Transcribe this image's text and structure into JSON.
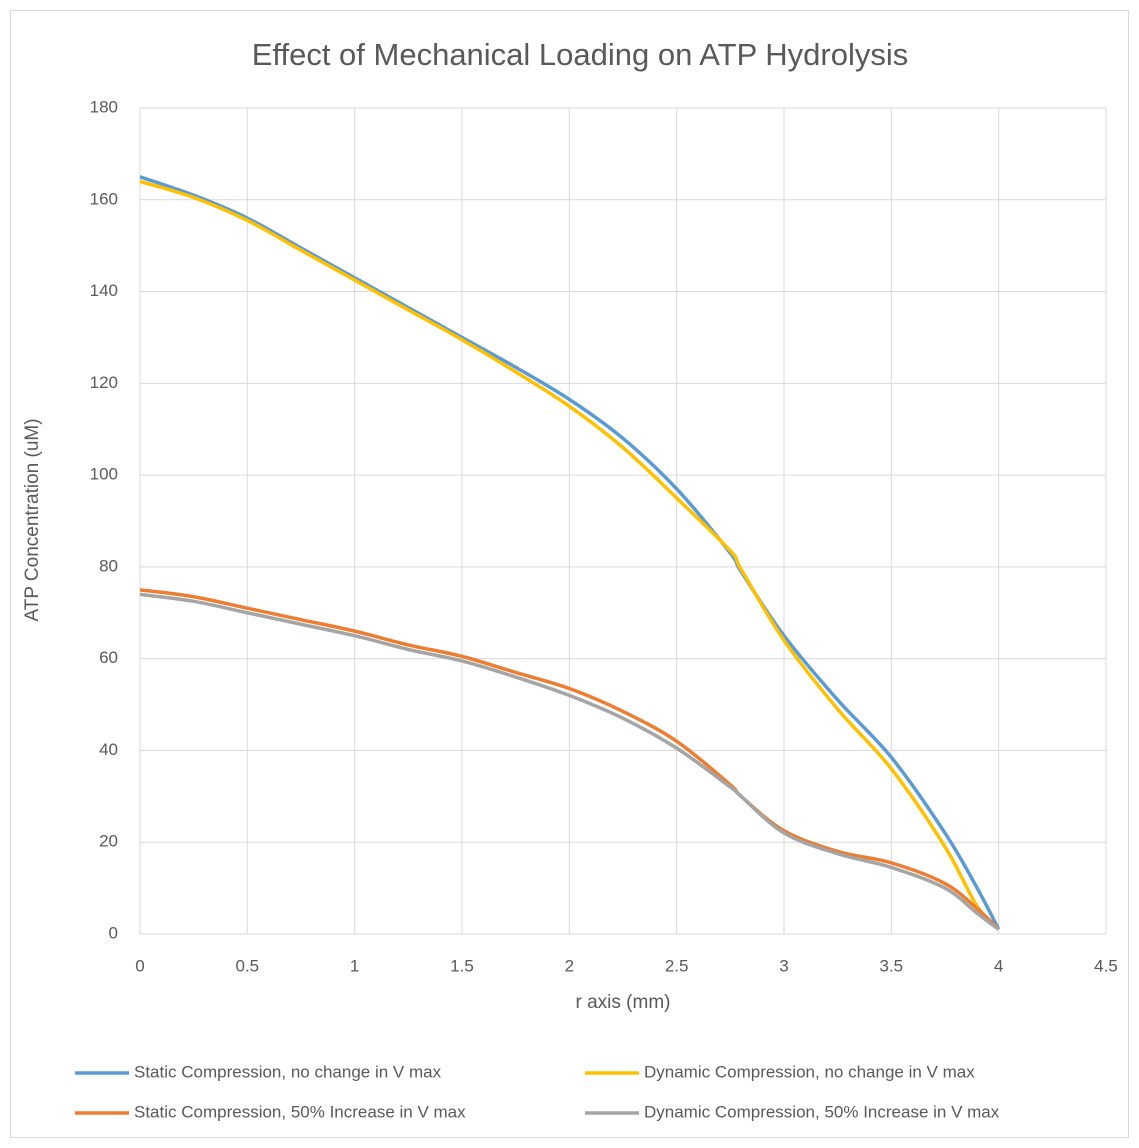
{
  "chart_data": {
    "type": "line",
    "title": "Effect of Mechanical Loading on ATP Hydrolysis",
    "x_label": "r axis (mm)",
    "y_label": "ATP Concentration (uM)",
    "x": [
      0,
      0.25,
      0.5,
      0.75,
      1,
      1.25,
      1.5,
      1.75,
      2,
      2.25,
      2.5,
      2.75,
      2.8,
      3,
      3.25,
      3.5,
      3.75,
      3.9,
      4
    ],
    "series": [
      {
        "name": "Static Compression, no change in V max",
        "color": "#5b9bd5",
        "values": [
          165,
          161,
          156,
          149.5,
          143,
          136.5,
          130,
          123.5,
          116.5,
          108,
          97,
          83,
          79,
          65,
          51,
          38.5,
          22,
          10,
          1
        ]
      },
      {
        "name": "Dynamic Compression, no change in V max",
        "color": "#ffc000",
        "values": [
          164,
          160.5,
          155.5,
          149,
          142.5,
          136,
          129.5,
          122.5,
          115,
          106,
          95,
          83.5,
          79.5,
          64,
          49,
          36,
          19,
          6,
          1
        ]
      },
      {
        "name": "Static Compression, 50% Increase in V max",
        "color": "#ed7d31",
        "values": [
          75,
          73.5,
          71,
          68.5,
          66,
          63,
          60.5,
          57,
          53.5,
          48.5,
          42,
          32.5,
          30,
          22.5,
          18,
          15.5,
          11,
          5.5,
          1
        ]
      },
      {
        "name": "Dynamic Compression, 50% Increase in V max",
        "color": "#a5a5a5",
        "values": [
          74,
          72.5,
          70,
          67.5,
          65,
          62,
          59.5,
          56,
          52,
          47,
          40.5,
          32,
          30,
          22,
          17.5,
          14.5,
          10,
          4.5,
          1
        ]
      }
    ],
    "xlim": [
      0,
      4.5
    ],
    "xticks": [
      0,
      0.5,
      1,
      1.5,
      2,
      2.5,
      3,
      3.5,
      4,
      4.5
    ],
    "ylim": [
      0,
      180
    ],
    "yticks": [
      0,
      20,
      40,
      60,
      80,
      100,
      120,
      140,
      160,
      180
    ],
    "grid": true,
    "legend": "bottom"
  }
}
